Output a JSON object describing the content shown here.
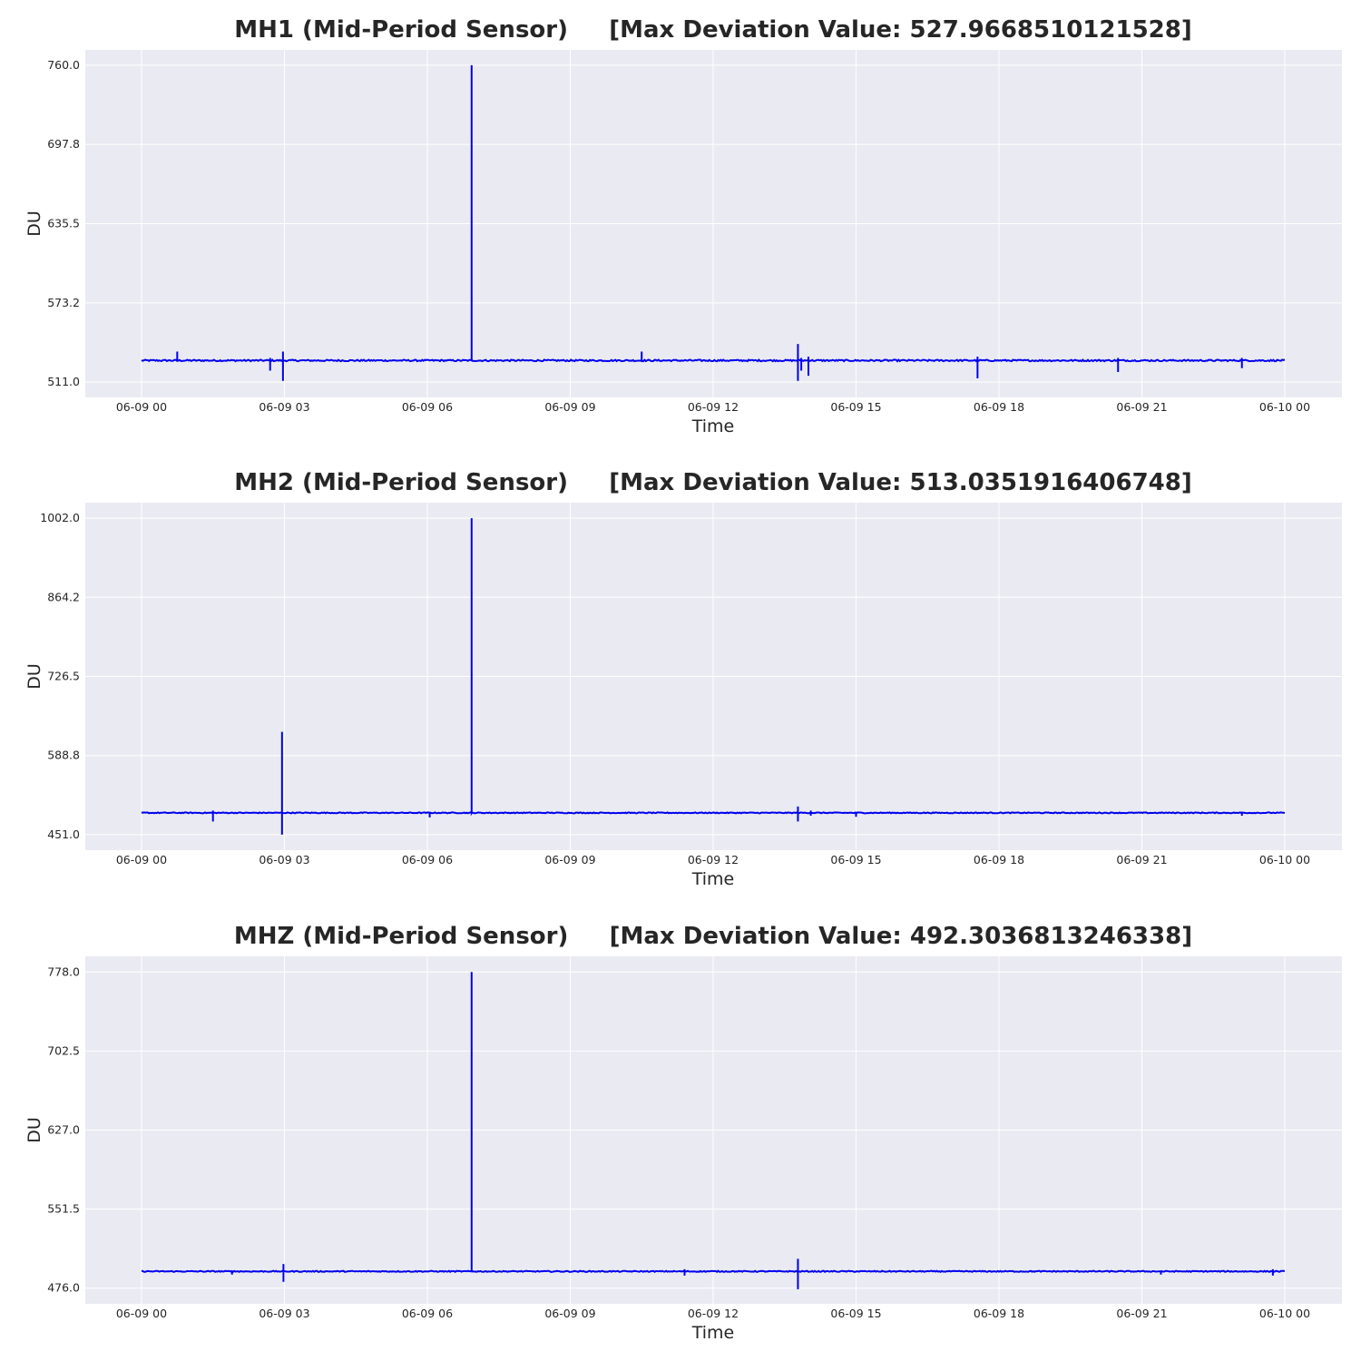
{
  "colors": {
    "plot_background": "#eaeaf2",
    "grid": "#ffffff",
    "series": "#0000ee",
    "text": "#262626"
  },
  "chart_data": [
    {
      "type": "line",
      "title": "MH1 (Mid-Period Sensor)     [Max Deviation Value: 527.9668510121528]",
      "xlabel": "Time",
      "ylabel": "DU",
      "x_tick_labels": [
        "06-09 00",
        "06-09 03",
        "06-09 06",
        "06-09 09",
        "06-09 12",
        "06-09 15",
        "06-09 18",
        "06-09 21",
        "06-10 00"
      ],
      "x_range_hours": [
        -1.18,
        25.2
      ],
      "y_tick_labels": [
        "511.0",
        "573.2",
        "635.5",
        "697.8",
        "760.0"
      ],
      "ylim": [
        499.0,
        772.0
      ],
      "grid": true,
      "legend": "none",
      "series": [
        {
          "baseline": 528.0,
          "noise": 0.6,
          "x_range_hours": [
            0,
            24
          ],
          "events": [
            {
              "t": 0.75,
              "min": 527,
              "max": 535
            },
            {
              "t": 2.7,
              "min": 520,
              "max": 530
            },
            {
              "t": 2.97,
              "min": 512,
              "max": 535
            },
            {
              "t": 6.93,
              "min": 528,
              "max": 760
            },
            {
              "t": 10.5,
              "min": 527,
              "max": 535
            },
            {
              "t": 13.78,
              "min": 512,
              "max": 541
            },
            {
              "t": 13.85,
              "min": 520,
              "max": 530
            },
            {
              "t": 14.0,
              "min": 516,
              "max": 531
            },
            {
              "t": 17.55,
              "min": 514,
              "max": 531
            },
            {
              "t": 20.5,
              "min": 519,
              "max": 530
            },
            {
              "t": 23.1,
              "min": 522,
              "max": 530
            }
          ]
        }
      ]
    },
    {
      "type": "line",
      "title": "MH2 (Mid-Period Sensor)     [Max Deviation Value: 513.0351916406748]",
      "xlabel": "Time",
      "ylabel": "DU",
      "x_tick_labels": [
        "06-09 00",
        "06-09 03",
        "06-09 06",
        "06-09 09",
        "06-09 12",
        "06-09 15",
        "06-09 18",
        "06-09 21",
        "06-10 00"
      ],
      "x_range_hours": [
        -1.18,
        25.2
      ],
      "y_tick_labels": [
        "451.0",
        "588.8",
        "726.5",
        "864.2",
        "1002.0"
      ],
      "ylim": [
        424.0,
        1029.0
      ],
      "grid": true,
      "legend": "none",
      "series": [
        {
          "baseline": 489.0,
          "noise": 0.8,
          "x_range_hours": [
            0,
            24
          ],
          "events": [
            {
              "t": 1.5,
              "min": 474,
              "max": 493
            },
            {
              "t": 2.95,
              "min": 451,
              "max": 630
            },
            {
              "t": 6.05,
              "min": 481,
              "max": 491
            },
            {
              "t": 6.93,
              "min": 489,
              "max": 1002
            },
            {
              "t": 13.78,
              "min": 474,
              "max": 500
            },
            {
              "t": 14.05,
              "min": 484,
              "max": 493
            },
            {
              "t": 15.0,
              "min": 482,
              "max": 491
            },
            {
              "t": 23.1,
              "min": 484,
              "max": 491
            }
          ]
        }
      ]
    },
    {
      "type": "line",
      "title": "MHZ (Mid-Period Sensor)     [Max Deviation Value: 492.3036813246338]",
      "xlabel": "Time",
      "ylabel": "DU",
      "x_tick_labels": [
        "06-09 00",
        "06-09 03",
        "06-09 06",
        "06-09 09",
        "06-09 12",
        "06-09 15",
        "06-09 18",
        "06-09 21",
        "06-10 00"
      ],
      "x_range_hours": [
        -1.18,
        25.2
      ],
      "y_tick_labels": [
        "476.0",
        "551.5",
        "627.0",
        "702.5",
        "778.0"
      ],
      "ylim": [
        461.0,
        793.0
      ],
      "grid": true,
      "legend": "none",
      "series": [
        {
          "baseline": 492.0,
          "noise": 0.5,
          "x_range_hours": [
            0,
            24
          ],
          "events": [
            {
              "t": 1.9,
              "min": 489,
              "max": 493
            },
            {
              "t": 2.98,
              "min": 482,
              "max": 499
            },
            {
              "t": 6.93,
              "min": 492,
              "max": 778
            },
            {
              "t": 11.4,
              "min": 488,
              "max": 494
            },
            {
              "t": 13.78,
              "min": 475,
              "max": 504
            },
            {
              "t": 21.4,
              "min": 489,
              "max": 493
            },
            {
              "t": 23.75,
              "min": 488,
              "max": 494
            }
          ]
        }
      ]
    }
  ]
}
